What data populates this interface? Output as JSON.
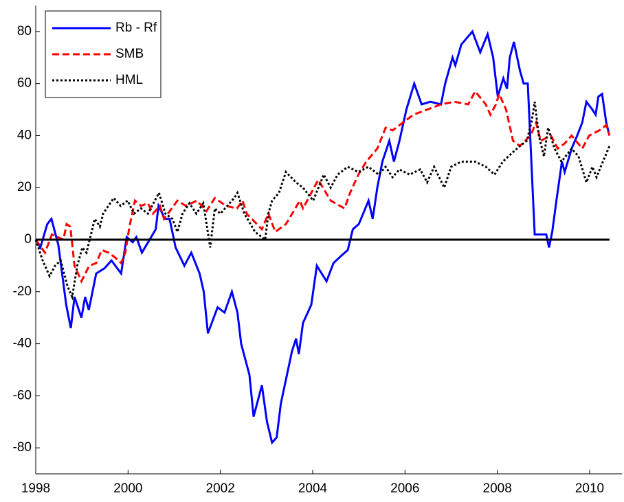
{
  "chart_data": {
    "type": "line",
    "xlim": [
      1998,
      2010.7
    ],
    "xticks": [
      1998,
      2000,
      2002,
      2004,
      2006,
      2008,
      2010
    ],
    "ylim": [
      -90,
      90
    ],
    "yticks": [
      -80,
      -60,
      -40,
      -20,
      0,
      20,
      40,
      60,
      80
    ],
    "hline": 0,
    "legend": "upper left",
    "series": [
      {
        "name": "Rb - Rf",
        "color": "#0000ff",
        "dash": "solid",
        "x": [
          1998.0,
          1998.1,
          1998.25,
          1998.34,
          1998.49,
          1998.66,
          1998.76,
          1998.84,
          1998.99,
          1999.07,
          1999.15,
          1999.31,
          1999.49,
          1999.64,
          1999.85,
          1999.97,
          2000.1,
          2000.18,
          2000.3,
          2000.6,
          2000.66,
          2000.8,
          2000.9,
          2001.03,
          2001.22,
          2001.37,
          2001.55,
          2001.64,
          2001.73,
          2001.94,
          2002.09,
          2002.25,
          2002.37,
          2002.45,
          2002.63,
          2002.72,
          2002.9,
          2003.01,
          2003.12,
          2003.22,
          2003.31,
          2003.55,
          2003.64,
          2003.7,
          2003.79,
          2003.97,
          2004.09,
          2004.3,
          2004.45,
          2004.63,
          2004.76,
          2004.87,
          2005.0,
          2005.21,
          2005.3,
          2005.4,
          2005.51,
          2005.66,
          2005.76,
          2005.88,
          2006.03,
          2006.2,
          2006.36,
          2006.55,
          2006.78,
          2006.87,
          2007.03,
          2007.09,
          2007.22,
          2007.46,
          2007.63,
          2007.79,
          2007.91,
          2008.01,
          2008.13,
          2008.21,
          2008.27,
          2008.36,
          2008.49,
          2008.57,
          2008.66,
          2008.81,
          2008.94,
          2009.06,
          2009.12,
          2009.19,
          2009.28,
          2009.4,
          2009.46,
          2009.61,
          2009.73,
          2009.84,
          2009.93,
          2010.06,
          2010.13,
          2010.19,
          2010.27,
          2010.36,
          2010.43
        ],
        "values": [
          0,
          -3,
          6,
          8,
          -2,
          -25,
          -34,
          -22,
          -30,
          -22,
          -27,
          -13,
          -11,
          -8,
          -13,
          1,
          -1,
          1,
          -5,
          4,
          13,
          8,
          8,
          -3,
          -10,
          -5,
          -13,
          -20,
          -36,
          -26,
          -28,
          -20,
          -28,
          -40,
          -52,
          -68,
          -56,
          -70,
          -78,
          -76,
          -63,
          -43,
          -38,
          -44,
          -32,
          -25,
          -10,
          -16,
          -9,
          -6,
          -4,
          4,
          6,
          15,
          8,
          20,
          30,
          38,
          30,
          38,
          50,
          60,
          52,
          53,
          52,
          60,
          70,
          67,
          75,
          80,
          72,
          79,
          70,
          55,
          62,
          58,
          70,
          76,
          65,
          60,
          60,
          2,
          2,
          2,
          -3,
          3,
          15,
          30,
          26,
          35,
          40,
          45,
          53,
          50,
          48,
          55,
          56,
          45,
          40
        ]
      },
      {
        "name": "SMB",
        "color": "#ff0000",
        "dash": "dashed",
        "x": [
          1998.0,
          1998.2,
          1998.35,
          1998.6,
          1998.67,
          1998.75,
          1998.84,
          1998.99,
          1999.16,
          1999.31,
          1999.43,
          1999.58,
          1999.73,
          1999.85,
          1999.94,
          2000.03,
          2000.15,
          2000.28,
          2000.43,
          2000.54,
          2000.69,
          2000.78,
          2001.07,
          2001.25,
          2001.49,
          2001.7,
          2001.88,
          2002.12,
          2002.36,
          2002.48,
          2002.57,
          2002.9,
          2003.04,
          2003.19,
          2003.42,
          2003.49,
          2003.72,
          2003.79,
          2004.12,
          2004.39,
          2004.69,
          2004.81,
          2004.99,
          2005.16,
          2005.4,
          2005.58,
          2005.73,
          2005.88,
          2006.18,
          2006.48,
          2006.78,
          2007.07,
          2007.37,
          2007.52,
          2007.75,
          2007.85,
          2007.97,
          2008.04,
          2008.19,
          2008.34,
          2008.49,
          2008.72,
          2008.84,
          2008.94,
          2009.16,
          2009.31,
          2009.46,
          2009.61,
          2009.84,
          2009.99,
          2010.21,
          2010.36,
          2010.43
        ],
        "values": [
          0,
          -5,
          2,
          0,
          6,
          5,
          -10,
          -16,
          -10,
          -9,
          -4,
          -5,
          -7,
          -9,
          -5,
          5,
          15,
          13,
          14,
          10,
          13,
          8,
          15,
          13,
          15,
          11,
          16,
          13,
          12,
          15,
          10,
          4,
          10,
          3,
          6,
          8,
          15,
          12,
          23,
          15,
          12,
          18,
          25,
          30,
          35,
          43,
          42,
          44,
          48,
          50,
          52,
          53,
          52,
          57,
          52,
          48,
          52,
          56,
          50,
          38,
          36,
          40,
          45,
          38,
          40,
          35,
          37,
          40,
          35,
          40,
          42,
          44,
          40
        ]
      },
      {
        "name": "HML",
        "color": "#000000",
        "dash": "dotted",
        "x": [
          1998.0,
          1998.15,
          1998.3,
          1998.42,
          1998.54,
          1998.69,
          1998.79,
          1998.9,
          1999.01,
          1999.1,
          1999.28,
          1999.39,
          1999.46,
          1999.69,
          1999.84,
          1999.99,
          2000.13,
          2000.28,
          2000.43,
          2000.67,
          2000.81,
          2000.96,
          2001.07,
          2001.18,
          2001.33,
          2001.48,
          2001.63,
          2001.78,
          2001.88,
          2002.0,
          2002.3,
          2002.37,
          2002.52,
          2002.75,
          2002.97,
          2003.04,
          2003.12,
          2003.27,
          2003.42,
          2003.64,
          2003.79,
          2004.01,
          2004.24,
          2004.39,
          2004.54,
          2004.76,
          2004.99,
          2005.21,
          2005.43,
          2005.58,
          2005.73,
          2005.88,
          2006.1,
          2006.33,
          2006.48,
          2006.63,
          2006.85,
          2007.0,
          2007.22,
          2007.52,
          2007.75,
          2007.94,
          2008.12,
          2008.3,
          2008.49,
          2008.64,
          2008.75,
          2008.81,
          2008.9,
          2009.01,
          2009.1,
          2009.24,
          2009.39,
          2009.61,
          2009.76,
          2009.93,
          2010.06,
          2010.15,
          2010.24,
          2010.36,
          2010.43
        ],
        "values": [
          0,
          -8,
          -14,
          -10,
          -8,
          -18,
          -22,
          -10,
          -3,
          -5,
          8,
          5,
          10,
          16,
          13,
          15,
          10,
          12,
          10,
          18,
          10,
          8,
          3,
          10,
          14,
          10,
          14,
          -3,
          12,
          10,
          16,
          18,
          10,
          3,
          0,
          10,
          15,
          18,
          26,
          22,
          20,
          15,
          25,
          20,
          25,
          28,
          26,
          28,
          25,
          28,
          24,
          27,
          25,
          27,
          22,
          28,
          20,
          28,
          30,
          30,
          28,
          25,
          30,
          33,
          36,
          38,
          46,
          53,
          40,
          32,
          43,
          35,
          30,
          35,
          32,
          22,
          28,
          24,
          28,
          33,
          36
        ]
      }
    ]
  }
}
